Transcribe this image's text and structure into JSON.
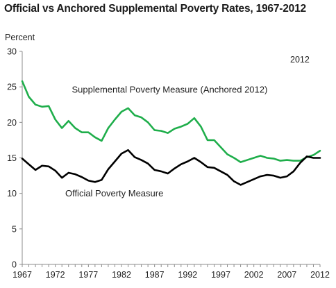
{
  "chart_data": {
    "type": "line",
    "title": "Official vs Anchored Supplemental Poverty Rates, 1967-2012",
    "ylabel": "Percent",
    "xlabel": "",
    "ylim": [
      0,
      30
    ],
    "xlim": [
      1967,
      2012
    ],
    "y_ticks": [
      0,
      5,
      10,
      15,
      20,
      25,
      30
    ],
    "x_ticks": [
      1967,
      1972,
      1977,
      1982,
      1987,
      1992,
      1997,
      2002,
      2007,
      2012
    ],
    "grid": false,
    "corner_label": "2012",
    "x": [
      1967,
      1968,
      1969,
      1970,
      1971,
      1972,
      1973,
      1974,
      1975,
      1976,
      1977,
      1978,
      1979,
      1980,
      1981,
      1982,
      1983,
      1984,
      1985,
      1986,
      1987,
      1988,
      1989,
      1990,
      1991,
      1992,
      1993,
      1994,
      1995,
      1996,
      1997,
      1998,
      1999,
      2000,
      2001,
      2002,
      2003,
      2004,
      2005,
      2006,
      2007,
      2008,
      2009,
      2010,
      2011,
      2012
    ],
    "series": [
      {
        "name": "Supplemental Poverty Measure (Anchored 2012)",
        "color": "#1fae4b",
        "values": [
          25.8,
          23.6,
          22.5,
          22.2,
          22.3,
          20.4,
          19.2,
          20.2,
          19.2,
          18.6,
          18.6,
          17.9,
          17.4,
          19.2,
          20.4,
          21.5,
          22.0,
          21.0,
          20.7,
          20.0,
          18.9,
          18.8,
          18.5,
          19.1,
          19.4,
          19.8,
          20.6,
          19.4,
          17.5,
          17.5,
          16.5,
          15.5,
          15.0,
          14.4,
          14.7,
          15.0,
          15.3,
          15.0,
          14.9,
          14.6,
          14.7,
          14.6,
          14.6,
          15.1,
          15.4,
          16.0
        ]
      },
      {
        "name": "Official Poverty Measure",
        "color": "#000000",
        "values": [
          14.9,
          14.1,
          13.3,
          13.9,
          13.8,
          13.2,
          12.2,
          12.9,
          12.7,
          12.3,
          11.8,
          11.6,
          11.9,
          13.4,
          14.5,
          15.6,
          16.1,
          15.1,
          14.7,
          14.2,
          13.3,
          13.1,
          12.8,
          13.5,
          14.1,
          14.5,
          15.0,
          14.4,
          13.7,
          13.6,
          13.1,
          12.6,
          11.7,
          11.2,
          11.6,
          12.0,
          12.4,
          12.6,
          12.5,
          12.2,
          12.4,
          13.1,
          14.3,
          15.2,
          15.0,
          15.0
        ]
      }
    ]
  }
}
